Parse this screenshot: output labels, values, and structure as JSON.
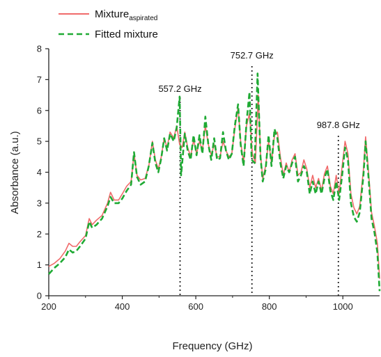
{
  "chart_data": {
    "type": "line",
    "xlabel": "Frequency (GHz)",
    "ylabel": "Absorbance (a.u.)",
    "xlim": [
      200,
      1100
    ],
    "ylim": [
      0,
      8
    ],
    "xticks": [
      200,
      400,
      600,
      800,
      1000
    ],
    "yticks": [
      0,
      1,
      2,
      3,
      4,
      5,
      6,
      7,
      8
    ],
    "legend": {
      "position": "top-left",
      "entries": [
        {
          "series": 0,
          "text": "Mixture",
          "subscript": "aspirated"
        },
        {
          "series": 1,
          "text": "Fitted mixture",
          "subscript": ""
        }
      ]
    },
    "annotations": [
      {
        "label": "557.2 GHz",
        "x": 557.2
      },
      {
        "label": "752.7 GHz",
        "x": 752.7
      },
      {
        "label": "987.8 GHz",
        "x": 987.8
      }
    ],
    "series": [
      {
        "name": "Mixture aspirated",
        "color": "#f06a6a",
        "style": "solid",
        "points": [
          [
            200,
            0.95
          ],
          [
            215,
            1.05
          ],
          [
            230,
            1.2
          ],
          [
            245,
            1.45
          ],
          [
            255,
            1.7
          ],
          [
            265,
            1.6
          ],
          [
            275,
            1.6
          ],
          [
            285,
            1.75
          ],
          [
            300,
            1.95
          ],
          [
            310,
            2.5
          ],
          [
            318,
            2.3
          ],
          [
            330,
            2.45
          ],
          [
            345,
            2.6
          ],
          [
            360,
            3.0
          ],
          [
            368,
            3.35
          ],
          [
            378,
            3.1
          ],
          [
            390,
            3.1
          ],
          [
            400,
            3.3
          ],
          [
            412,
            3.55
          ],
          [
            424,
            3.7
          ],
          [
            432,
            4.6
          ],
          [
            440,
            3.9
          ],
          [
            450,
            3.75
          ],
          [
            462,
            3.8
          ],
          [
            472,
            4.2
          ],
          [
            482,
            5.0
          ],
          [
            490,
            4.4
          ],
          [
            498,
            4.1
          ],
          [
            506,
            4.5
          ],
          [
            514,
            5.1
          ],
          [
            522,
            4.8
          ],
          [
            530,
            5.3
          ],
          [
            540,
            5.1
          ],
          [
            548,
            5.5
          ],
          [
            556,
            4.9
          ],
          [
            563,
            4.8
          ],
          [
            570,
            5.3
          ],
          [
            578,
            4.8
          ],
          [
            586,
            4.5
          ],
          [
            594,
            5.05
          ],
          [
            602,
            4.6
          ],
          [
            610,
            5.0
          ],
          [
            618,
            4.7
          ],
          [
            626,
            5.5
          ],
          [
            634,
            4.9
          ],
          [
            642,
            4.55
          ],
          [
            650,
            4.9
          ],
          [
            658,
            4.5
          ],
          [
            666,
            4.5
          ],
          [
            674,
            5.0
          ],
          [
            682,
            4.7
          ],
          [
            690,
            4.5
          ],
          [
            698,
            4.6
          ],
          [
            706,
            5.4
          ],
          [
            715,
            6.1
          ],
          [
            722,
            5.0
          ],
          [
            730,
            4.3
          ],
          [
            738,
            5.5
          ],
          [
            746,
            5.9
          ],
          [
            754,
            4.6
          ],
          [
            762,
            4.3
          ],
          [
            770,
            6.5
          ],
          [
            776,
            4.6
          ],
          [
            782,
            3.8
          ],
          [
            790,
            4.2
          ],
          [
            798,
            5.0
          ],
          [
            806,
            4.3
          ],
          [
            814,
            5.2
          ],
          [
            822,
            5.3
          ],
          [
            830,
            4.5
          ],
          [
            838,
            3.9
          ],
          [
            846,
            4.3
          ],
          [
            854,
            4.0
          ],
          [
            862,
            4.4
          ],
          [
            870,
            4.6
          ],
          [
            878,
            3.9
          ],
          [
            886,
            4.0
          ],
          [
            894,
            4.4
          ],
          [
            902,
            4.1
          ],
          [
            910,
            3.5
          ],
          [
            918,
            3.9
          ],
          [
            926,
            3.5
          ],
          [
            934,
            3.8
          ],
          [
            942,
            3.4
          ],
          [
            950,
            3.95
          ],
          [
            958,
            4.2
          ],
          [
            966,
            3.55
          ],
          [
            974,
            3.3
          ],
          [
            982,
            3.9
          ],
          [
            990,
            3.3
          ],
          [
            998,
            4.2
          ],
          [
            1006,
            5.0
          ],
          [
            1014,
            4.6
          ],
          [
            1022,
            3.3
          ],
          [
            1030,
            2.85
          ],
          [
            1038,
            2.65
          ],
          [
            1046,
            2.9
          ],
          [
            1056,
            4.1
          ],
          [
            1062,
            5.15
          ],
          [
            1070,
            4.0
          ],
          [
            1078,
            2.7
          ],
          [
            1086,
            2.25
          ],
          [
            1094,
            1.7
          ],
          [
            1100,
            0.55
          ]
        ]
      },
      {
        "name": "Fitted mixture",
        "color": "#1faa34",
        "style": "dashed",
        "points": [
          [
            200,
            0.7
          ],
          [
            215,
            0.9
          ],
          [
            230,
            1.05
          ],
          [
            245,
            1.25
          ],
          [
            255,
            1.5
          ],
          [
            265,
            1.4
          ],
          [
            275,
            1.45
          ],
          [
            285,
            1.6
          ],
          [
            300,
            1.85
          ],
          [
            310,
            2.4
          ],
          [
            318,
            2.2
          ],
          [
            330,
            2.3
          ],
          [
            345,
            2.5
          ],
          [
            360,
            2.9
          ],
          [
            368,
            3.2
          ],
          [
            378,
            3.0
          ],
          [
            390,
            3.0
          ],
          [
            400,
            3.15
          ],
          [
            412,
            3.4
          ],
          [
            424,
            3.6
          ],
          [
            432,
            4.65
          ],
          [
            440,
            3.85
          ],
          [
            450,
            3.6
          ],
          [
            462,
            3.7
          ],
          [
            472,
            4.2
          ],
          [
            482,
            4.95
          ],
          [
            490,
            4.3
          ],
          [
            498,
            4.0
          ],
          [
            506,
            4.45
          ],
          [
            514,
            5.1
          ],
          [
            522,
            4.7
          ],
          [
            530,
            5.25
          ],
          [
            540,
            5.0
          ],
          [
            548,
            5.45
          ],
          [
            556,
            6.45
          ],
          [
            560,
            3.9
          ],
          [
            570,
            5.25
          ],
          [
            578,
            4.7
          ],
          [
            586,
            4.4
          ],
          [
            594,
            5.2
          ],
          [
            602,
            4.55
          ],
          [
            610,
            5.2
          ],
          [
            618,
            4.6
          ],
          [
            626,
            5.8
          ],
          [
            634,
            4.9
          ],
          [
            642,
            4.4
          ],
          [
            650,
            5.1
          ],
          [
            658,
            4.4
          ],
          [
            666,
            4.45
          ],
          [
            674,
            5.3
          ],
          [
            682,
            4.7
          ],
          [
            690,
            4.4
          ],
          [
            698,
            4.6
          ],
          [
            706,
            5.5
          ],
          [
            715,
            6.2
          ],
          [
            722,
            4.9
          ],
          [
            730,
            4.2
          ],
          [
            738,
            5.6
          ],
          [
            746,
            6.6
          ],
          [
            752,
            4.4
          ],
          [
            760,
            4.3
          ],
          [
            768,
            7.2
          ],
          [
            776,
            4.5
          ],
          [
            782,
            3.7
          ],
          [
            790,
            4.1
          ],
          [
            798,
            5.2
          ],
          [
            806,
            4.2
          ],
          [
            814,
            5.4
          ],
          [
            822,
            5.1
          ],
          [
            830,
            4.3
          ],
          [
            838,
            3.8
          ],
          [
            846,
            4.2
          ],
          [
            854,
            4.0
          ],
          [
            862,
            4.3
          ],
          [
            870,
            4.5
          ],
          [
            878,
            3.7
          ],
          [
            886,
            3.9
          ],
          [
            894,
            4.2
          ],
          [
            902,
            4.0
          ],
          [
            910,
            3.3
          ],
          [
            918,
            3.7
          ],
          [
            926,
            3.3
          ],
          [
            934,
            3.7
          ],
          [
            942,
            3.3
          ],
          [
            950,
            3.8
          ],
          [
            958,
            4.1
          ],
          [
            966,
            3.4
          ],
          [
            974,
            3.1
          ],
          [
            982,
            3.7
          ],
          [
            990,
            3.1
          ],
          [
            998,
            3.9
          ],
          [
            1006,
            4.8
          ],
          [
            1014,
            4.4
          ],
          [
            1022,
            3.0
          ],
          [
            1030,
            2.55
          ],
          [
            1038,
            2.4
          ],
          [
            1046,
            2.7
          ],
          [
            1056,
            3.9
          ],
          [
            1062,
            5.0
          ],
          [
            1070,
            3.8
          ],
          [
            1078,
            2.5
          ],
          [
            1086,
            2.05
          ],
          [
            1094,
            1.4
          ],
          [
            1100,
            0.15
          ]
        ]
      }
    ]
  }
}
